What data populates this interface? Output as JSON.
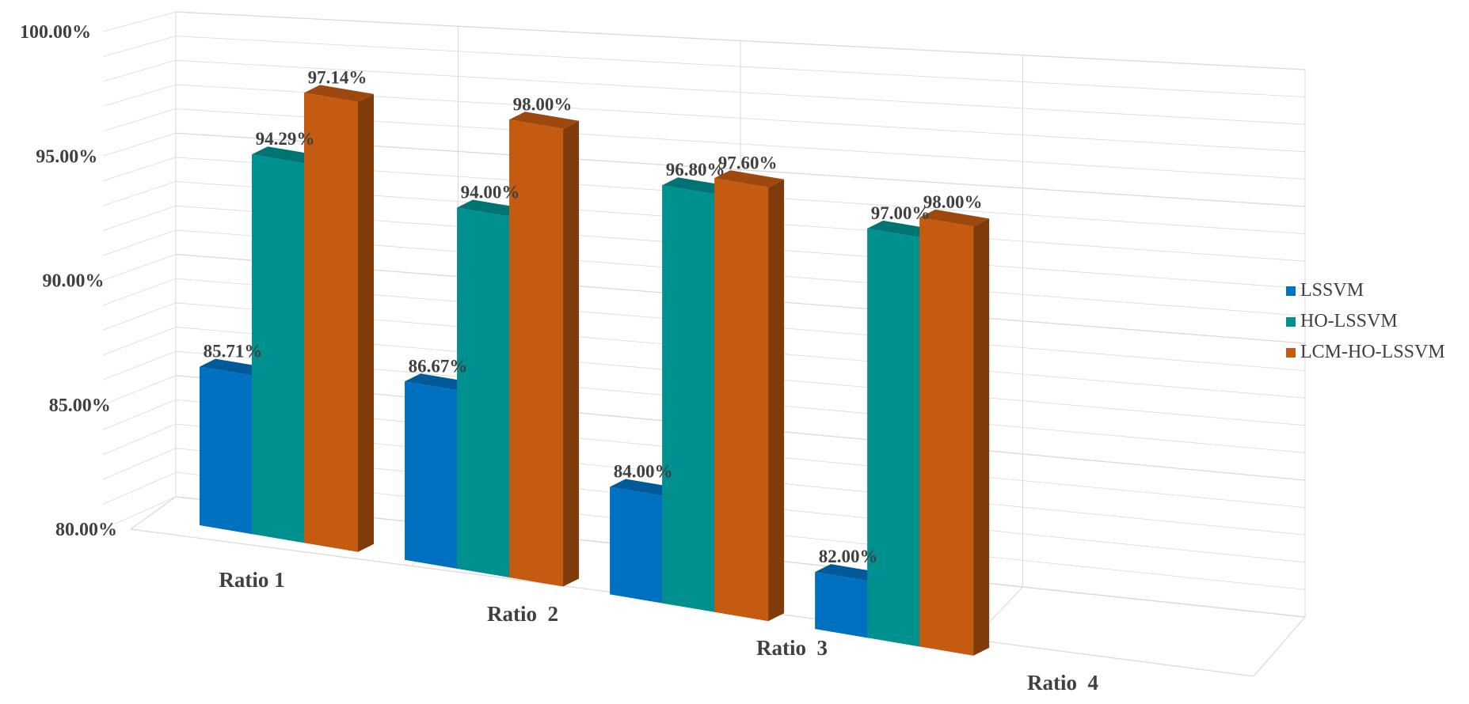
{
  "chart_data": {
    "type": "bar",
    "categories": [
      "Ratio 1",
      "Ratio  2",
      "Ratio  3",
      "Ratio  4"
    ],
    "series": [
      {
        "name": "LSSVM",
        "values": [
          85.71,
          86.67,
          84.0,
          82.0
        ],
        "labels": [
          "85.71%",
          "86.67%",
          "84.00%",
          "82.00%"
        ],
        "color": "#0070C0"
      },
      {
        "name": "HO-LSSVM",
        "values": [
          94.29,
          94.0,
          96.8,
          97.0
        ],
        "labels": [
          "94.29%",
          "94.00%",
          "96.80%",
          "97.00%"
        ],
        "color": "#009090"
      },
      {
        "name": "LCM-HO-LSSVM",
        "values": [
          97.14,
          98.0,
          97.6,
          98.0
        ],
        "labels": [
          "97.14%",
          "98.00%",
          "97.60%",
          "98.00%"
        ],
        "color": "#C55A11"
      }
    ],
    "yticks": [
      "80.00%",
      "85.00%",
      "90.00%",
      "95.00%",
      "100.00%"
    ],
    "ylim": [
      80,
      100
    ],
    "title": "",
    "xlabel": "",
    "ylabel": "",
    "grid": true,
    "legend_position": "right",
    "style": "3d-perspective"
  }
}
